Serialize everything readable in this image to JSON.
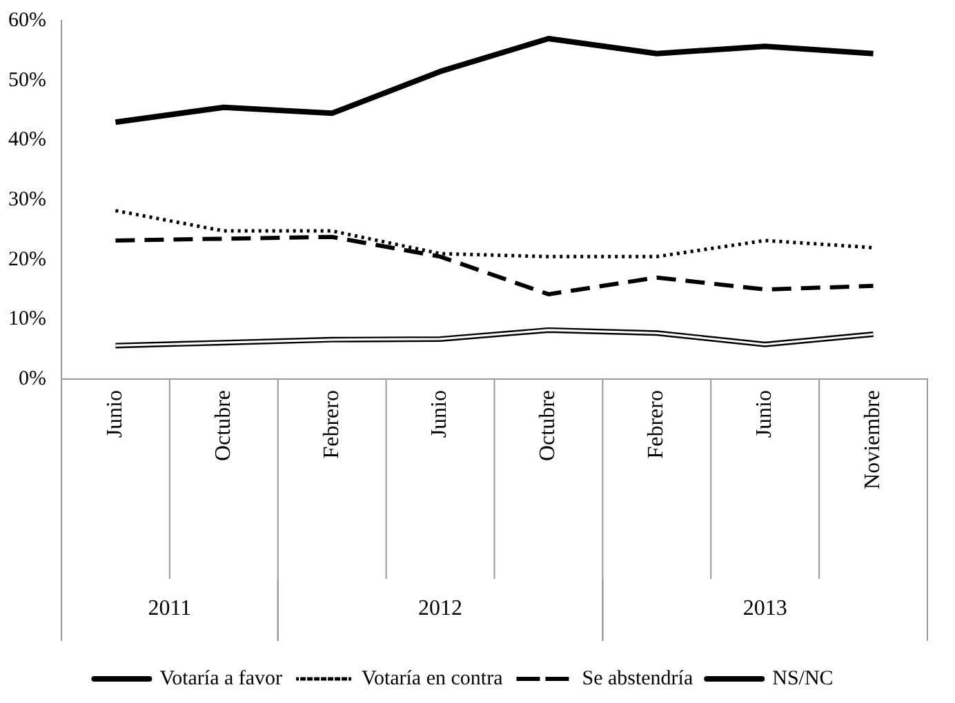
{
  "chart_data": {
    "type": "line",
    "categories": [
      "Junio",
      "Octubre",
      "Febrero",
      "Junio",
      "Octubre",
      "Febrero",
      "Junio",
      "Noviembre"
    ],
    "series": [
      {
        "name": "Votaría a favor",
        "color": "#000000",
        "line_style": "solid",
        "values": [
          43,
          45.5,
          44.5,
          51.5,
          57,
          54.5,
          55.7,
          54.5
        ]
      },
      {
        "name": "Votaría en contra",
        "color": "#000000",
        "line_style": "dotted",
        "values": [
          28.2,
          24.8,
          24.8,
          21,
          20.5,
          20.5,
          23.2,
          22
        ]
      },
      {
        "name": "Se abstendría",
        "color": "#000000",
        "line_style": "dashed",
        "values": [
          23.2,
          23.5,
          23.8,
          20.5,
          14.2,
          17,
          15,
          15.6
        ]
      },
      {
        "name": "NS/NC",
        "color": "#000000",
        "line_style": "solid",
        "values": [
          5.6,
          6.1,
          6.6,
          6.7,
          8.2,
          7.7,
          5.8,
          7.5
        ]
      }
    ],
    "annotations": [
      "2011",
      "2012",
      "2013"
    ],
    "ylim": [
      0,
      60
    ],
    "yticks": [
      {
        "value": 0,
        "label": "0%"
      },
      {
        "value": 10,
        "label": "10%"
      },
      {
        "value": 20,
        "label": "20%"
      },
      {
        "value": 30,
        "label": "30%"
      },
      {
        "value": 40,
        "label": "40%"
      },
      {
        "value": 50,
        "label": "50%"
      },
      {
        "value": 60,
        "label": "60%"
      }
    ],
    "grid": false,
    "legend": "bottom",
    "marker": "none"
  }
}
